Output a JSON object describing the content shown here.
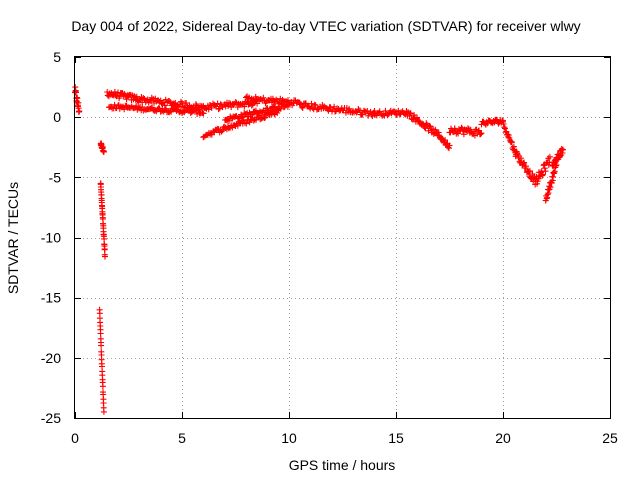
{
  "chart_data": {
    "type": "scatter",
    "title": "Day 004 of 2022, Sidereal Day-to-day VTEC variation (SDTVAR) for receiver wlwy",
    "xlabel": "GPS time / hours",
    "ylabel": "SDTVAR / TECUs",
    "xlim": [
      0,
      25
    ],
    "ylim": [
      -25,
      5
    ],
    "xticks": [
      0,
      5,
      10,
      15,
      20,
      25
    ],
    "yticks": [
      5,
      0,
      -5,
      -10,
      -15,
      -20,
      -25
    ],
    "grid": true,
    "marker": "+",
    "series": [
      {
        "name": "SDTVAR",
        "color": "#ff0000",
        "segments": [
          {
            "x": [
              0.0,
              0.2
            ],
            "y": [
              2.2,
              0.5
            ],
            "jitter": 0.8,
            "step": 0.012
          },
          {
            "x": [
              1.2,
              1.35
            ],
            "y": [
              -2.2,
              -2.8
            ],
            "jitter": 0.3,
            "step": 0.01
          },
          {
            "x": [
              1.2,
              1.4
            ],
            "y": [
              -5.5,
              -11.5
            ],
            "jitter": 0.3,
            "step": 0.006
          },
          {
            "x": [
              1.15,
              1.35
            ],
            "y": [
              -16.0,
              -24.5
            ],
            "jitter": 0.2,
            "step": 0.008
          },
          {
            "x": [
              1.5,
              3.0
            ],
            "y": [
              2.0,
              1.5
            ],
            "jitter": 0.5,
            "step": 0.04
          },
          {
            "x": [
              3.0,
              6.0
            ],
            "y": [
              1.5,
              0.8
            ],
            "jitter": 0.5,
            "step": 0.05
          },
          {
            "x": [
              1.6,
              6.0
            ],
            "y": [
              0.9,
              0.4
            ],
            "jitter": 0.35,
            "step": 0.05
          },
          {
            "x": [
              6.0,
              8.5
            ],
            "y": [
              0.8,
              1.2
            ],
            "jitter": 0.5,
            "step": 0.05
          },
          {
            "x": [
              6.0,
              9.5
            ],
            "y": [
              -1.5,
              0.5
            ],
            "jitter": 0.4,
            "step": 0.05
          },
          {
            "x": [
              7.0,
              10.0
            ],
            "y": [
              -0.2,
              1.0
            ],
            "jitter": 0.4,
            "step": 0.05
          },
          {
            "x": [
              8.0,
              10.5
            ],
            "y": [
              1.5,
              1.2
            ],
            "jitter": 0.5,
            "step": 0.05
          },
          {
            "x": [
              10.5,
              14.0
            ],
            "y": [
              1.0,
              0.3
            ],
            "jitter": 0.5,
            "step": 0.05
          },
          {
            "x": [
              14.0,
              15.5
            ],
            "y": [
              0.3,
              0.4
            ],
            "jitter": 0.4,
            "step": 0.05
          },
          {
            "x": [
              15.5,
              17.0
            ],
            "y": [
              0.4,
              -1.5
            ],
            "jitter": 0.5,
            "step": 0.04
          },
          {
            "x": [
              17.0,
              17.5
            ],
            "y": [
              -1.5,
              -2.5
            ],
            "jitter": 0.4,
            "step": 0.03
          },
          {
            "x": [
              17.5,
              19.0
            ],
            "y": [
              -1.0,
              -1.3
            ],
            "jitter": 0.6,
            "step": 0.04
          },
          {
            "x": [
              19.0,
              20.0
            ],
            "y": [
              -0.5,
              -0.3
            ],
            "jitter": 0.4,
            "step": 0.04
          },
          {
            "x": [
              20.0,
              20.6
            ],
            "y": [
              -0.5,
              -3.0
            ],
            "jitter": 0.5,
            "step": 0.03
          },
          {
            "x": [
              20.6,
              21.5
            ],
            "y": [
              -3.0,
              -5.3
            ],
            "jitter": 0.6,
            "step": 0.03
          },
          {
            "x": [
              21.5,
              22.2
            ],
            "y": [
              -5.5,
              -3.5
            ],
            "jitter": 0.8,
            "step": 0.03
          },
          {
            "x": [
              22.0,
              22.5
            ],
            "y": [
              -6.8,
              -4.0
            ],
            "jitter": 0.5,
            "step": 0.02
          },
          {
            "x": [
              22.3,
              22.8
            ],
            "y": [
              -4.0,
              -2.7
            ],
            "jitter": 0.5,
            "step": 0.02
          }
        ]
      }
    ]
  }
}
